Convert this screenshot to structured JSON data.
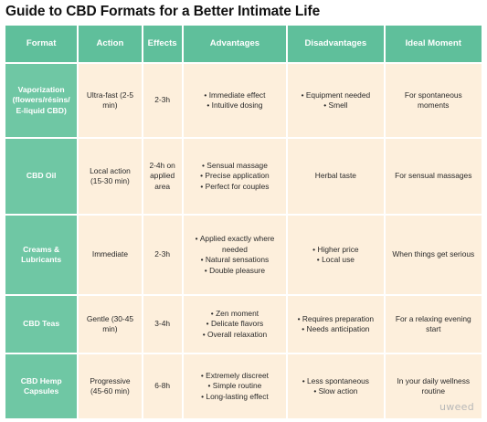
{
  "title": "Guide to CBD Formats for a Better Intimate Life",
  "headers": [
    "Format",
    "Action",
    "Effects",
    "Advantages",
    "Disadvantages",
    "Ideal Moment"
  ],
  "rows": [
    {
      "format": "Vaporization (flowers/résins/ E-liquid CBD)",
      "action": "Ultra-fast (2-5 min)",
      "effects": "2-3h",
      "advantages": [
        "Immediate effect",
        "Intuitive dosing"
      ],
      "disadvantages": [
        "Equipment needed",
        "Smell"
      ],
      "ideal": "For spontaneous moments"
    },
    {
      "format": "CBD Oil",
      "action": "Local action (15-30 min)",
      "effects": "2-4h on applied area",
      "advantages": [
        "Sensual massage",
        "Precise application",
        "Perfect for couples"
      ],
      "disadvantages": "Herbal taste",
      "ideal": "For sensual massages"
    },
    {
      "format": "Creams & Lubricants",
      "action": "Immediate",
      "effects": "2-3h",
      "advantages": [
        "Applied exactly where needed",
        "Natural sensations",
        "Double pleasure"
      ],
      "disadvantages": [
        "Higher price",
        "Local use"
      ],
      "ideal": "When things get serious"
    },
    {
      "format": "CBD Teas",
      "action": "Gentle (30-45 min)",
      "effects": "3-4h",
      "advantages": [
        "Zen moment",
        "Delicate flavors",
        "Overall relaxation"
      ],
      "disadvantages": [
        "Requires preparation",
        "Needs anticipation"
      ],
      "ideal": "For a relaxing evening start"
    },
    {
      "format": "CBD Hemp Capsules",
      "action": "Progressive (45-60 min)",
      "effects": "6-8h",
      "advantages": [
        "Extremely discreet",
        "Simple routine",
        "Long-lasting effect"
      ],
      "disadvantages": [
        "Less spontaneous",
        "Slow action"
      ],
      "ideal": "In your daily wellness routine"
    }
  ],
  "logo": "uweed",
  "colors": {
    "header_bg": "#5fbf9b",
    "format_bg": "#6fc7a4",
    "cell_bg": "#fdefdc",
    "header_text": "#ffffff"
  }
}
